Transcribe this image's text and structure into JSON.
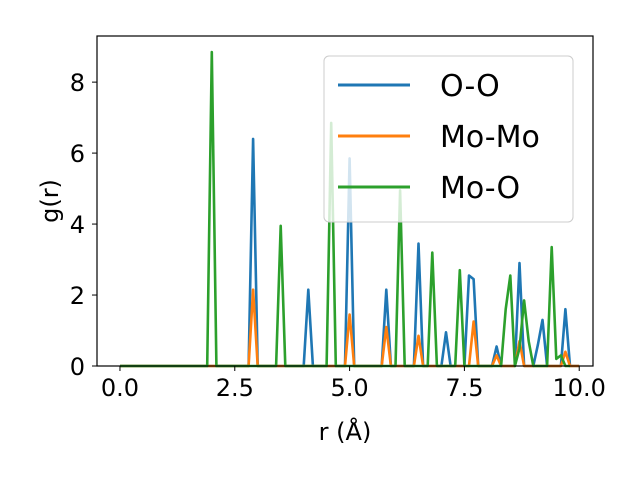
{
  "chart_data": {
    "type": "line",
    "xlabel": "r (Å)",
    "ylabel": "g(r)",
    "xlim": [
      -0.5,
      10.3
    ],
    "ylim": [
      0,
      9.3
    ],
    "xticks": [
      0.0,
      2.5,
      5.0,
      7.5,
      10.0
    ],
    "xtick_labels": [
      "0.0",
      "2.5",
      "5.0",
      "7.5",
      "10.0"
    ],
    "yticks": [
      0,
      2,
      4,
      6,
      8
    ],
    "ytick_labels": [
      "0",
      "2",
      "4",
      "6",
      "8"
    ],
    "grid": false,
    "legend_position": "top-right",
    "series": [
      {
        "name": "O-O",
        "color": "#1f77b4",
        "x": [
          0,
          2.8,
          2.9,
          3.0,
          4.0,
          4.1,
          4.2,
          4.9,
          5.0,
          5.1,
          5.7,
          5.8,
          5.9,
          6.4,
          6.5,
          6.6,
          7.0,
          7.1,
          7.2,
          7.5,
          7.6,
          7.7,
          7.8,
          8.1,
          8.2,
          8.3,
          8.6,
          8.7,
          8.8,
          9.0,
          9.1,
          9.2,
          9.3,
          9.6,
          9.7,
          9.8,
          10.0
        ],
        "y": [
          0,
          0,
          6.4,
          0,
          0,
          2.15,
          0,
          0,
          5.85,
          0,
          0,
          2.15,
          0,
          0,
          3.45,
          0,
          0,
          0.95,
          0,
          0,
          2.55,
          2.45,
          0,
          0,
          0.55,
          0,
          0,
          2.9,
          0,
          0,
          0.6,
          1.3,
          0,
          0,
          1.6,
          0,
          0
        ]
      },
      {
        "name": "Mo-Mo",
        "color": "#ff7f0e",
        "x": [
          0,
          2.8,
          2.9,
          3.0,
          4.9,
          5.0,
          5.1,
          5.7,
          5.8,
          5.9,
          6.4,
          6.5,
          6.6,
          7.6,
          7.7,
          7.8,
          8.1,
          8.2,
          8.3,
          8.6,
          8.7,
          8.8,
          9.6,
          9.7,
          9.8,
          10.0
        ],
        "y": [
          0,
          0,
          2.15,
          0,
          0,
          1.45,
          0,
          0,
          1.1,
          0,
          0,
          0.85,
          0,
          0,
          1.25,
          0,
          0,
          0.3,
          0,
          0,
          0.7,
          0,
          0,
          0.4,
          0,
          0
        ]
      },
      {
        "name": "Mo-O",
        "color": "#2ca02c",
        "x": [
          0,
          1.9,
          2.0,
          2.1,
          3.4,
          3.5,
          3.6,
          4.5,
          4.6,
          4.7,
          6.0,
          6.1,
          6.2,
          6.7,
          6.8,
          6.9,
          7.3,
          7.4,
          7.5,
          8.3,
          8.4,
          8.5,
          8.6,
          8.7,
          8.8,
          8.9,
          9.0,
          9.3,
          9.4,
          9.5,
          9.6,
          9.7,
          9.8
        ],
        "y": [
          0,
          0,
          8.85,
          0,
          0,
          3.95,
          0,
          0,
          6.85,
          0,
          0,
          4.95,
          0,
          0,
          3.2,
          0,
          0,
          2.7,
          0,
          0,
          1.6,
          2.55,
          0,
          0.5,
          1.85,
          0.7,
          0,
          0,
          3.35,
          0.2,
          0.3,
          0,
          0
        ]
      }
    ]
  }
}
